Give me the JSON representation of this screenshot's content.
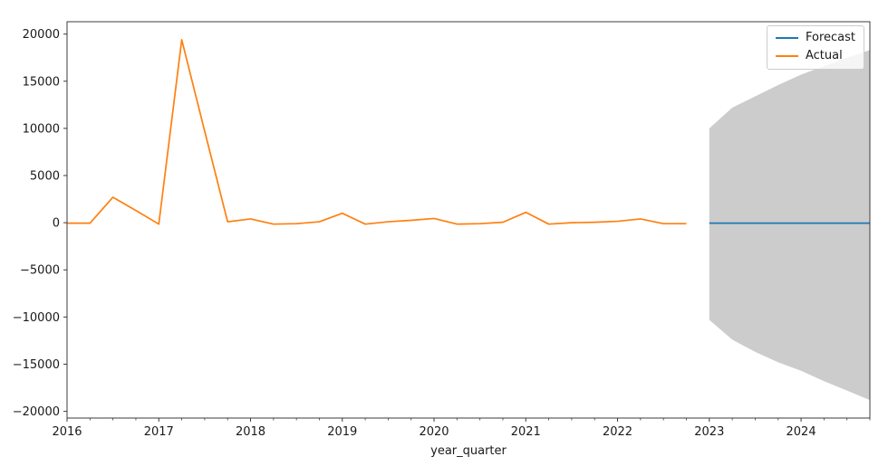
{
  "chart_data": {
    "type": "line",
    "title": "",
    "xlabel": "year_quarter",
    "ylabel": "",
    "xlim": [
      2016,
      2024.75
    ],
    "ylim": [
      -20710,
      21310
    ],
    "grid": false,
    "x_major_ticks": [
      2016,
      2017,
      2018,
      2019,
      2020,
      2021,
      2022,
      2023,
      2024
    ],
    "x_minor_tick_step": 0.25,
    "y_ticks": [
      -20000,
      -15000,
      -10000,
      -5000,
      0,
      5000,
      10000,
      15000,
      20000
    ],
    "legend": {
      "position": "upper right",
      "items": [
        {
          "label": "Forecast",
          "color": "#1f77b4"
        },
        {
          "label": "Actual",
          "color": "#ff7f0e"
        }
      ]
    },
    "series": [
      {
        "name": "Forecast",
        "color": "#1f77b4",
        "x": [
          2023.0,
          2023.25,
          2023.5,
          2023.75,
          2024.0,
          2024.25,
          2024.5,
          2024.75
        ],
        "y": [
          -50,
          -50,
          -50,
          -50,
          -50,
          -50,
          -50,
          -50
        ]
      },
      {
        "name": "Actual",
        "color": "#ff7f0e",
        "x": [
          2016.0,
          2016.25,
          2016.5,
          2016.75,
          2017.0,
          2017.25,
          2017.5,
          2017.75,
          2018.0,
          2018.25,
          2018.5,
          2018.75,
          2019.0,
          2019.25,
          2019.5,
          2019.75,
          2020.0,
          2020.25,
          2020.5,
          2020.75,
          2021.0,
          2021.25,
          2021.5,
          2021.75,
          2022.0,
          2022.25,
          2022.5,
          2022.75
        ],
        "y": [
          -50,
          -50,
          2700,
          1300,
          -150,
          19400,
          9700,
          100,
          400,
          -150,
          -100,
          100,
          1000,
          -150,
          100,
          250,
          450,
          -150,
          -100,
          50,
          1100,
          -150,
          0,
          50,
          150,
          400,
          -100,
          -100
        ]
      }
    ],
    "confidence_band": {
      "color": "#cccccc",
      "x": [
        2023.0,
        2023.25,
        2023.5,
        2023.75,
        2024.0,
        2024.25,
        2024.5,
        2024.75
      ],
      "upper": [
        10000,
        12200,
        13400,
        14600,
        15700,
        16600,
        17500,
        18300
      ],
      "lower": [
        -10300,
        -12400,
        -13700,
        -14800,
        -15700,
        -16800,
        -17800,
        -18800
      ]
    }
  },
  "axis_style": {
    "spine_color": "#3c3c3c",
    "tick_color": "#3c3c3c"
  }
}
